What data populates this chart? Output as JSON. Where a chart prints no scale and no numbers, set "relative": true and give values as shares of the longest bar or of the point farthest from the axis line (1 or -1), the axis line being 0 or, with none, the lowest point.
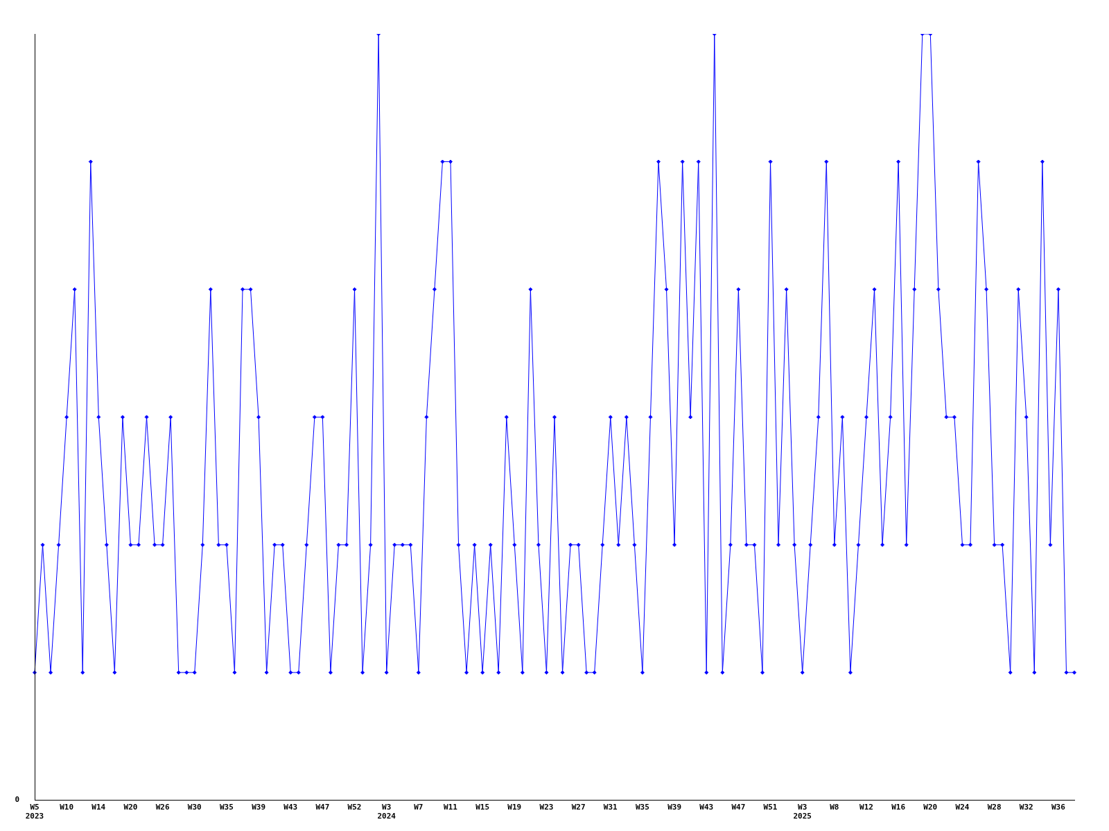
{
  "chart_data": {
    "type": "line",
    "relative": true,
    "marker": "diamond",
    "line_style": "solid",
    "grid": false,
    "legend": false,
    "annotations": [
      "0"
    ],
    "categories": [
      "W5\n2023",
      null,
      null,
      null,
      "W10",
      null,
      null,
      null,
      "W14",
      null,
      null,
      null,
      "W20",
      null,
      null,
      null,
      "W26",
      null,
      null,
      null,
      "W30",
      null,
      null,
      null,
      "W35",
      null,
      null,
      null,
      "W39",
      null,
      null,
      null,
      "W43",
      null,
      null,
      null,
      "W47",
      null,
      null,
      null,
      "W52",
      null,
      null,
      null,
      "W3\n2024",
      null,
      null,
      null,
      "W7",
      null,
      null,
      null,
      "W11",
      null,
      null,
      null,
      "W15",
      null,
      null,
      null,
      "W19",
      null,
      null,
      null,
      "W23",
      null,
      null,
      null,
      "W27",
      null,
      null,
      null,
      "W31",
      null,
      null,
      null,
      "W35",
      null,
      null,
      null,
      "W39",
      null,
      null,
      null,
      "W43",
      null,
      null,
      null,
      "W47",
      null,
      null,
      null,
      "W51",
      null,
      null,
      null,
      "W3\n2025",
      null,
      null,
      null,
      "W8",
      null,
      null,
      null,
      "W12",
      null,
      null,
      null,
      "W16",
      null,
      null,
      null,
      "W20",
      null,
      null,
      null,
      "W24",
      null,
      null,
      null,
      "W28",
      null,
      null,
      null,
      "W32",
      null,
      null,
      null,
      "W36",
      null,
      null
    ],
    "series": [
      {
        "color": "#0000ff",
        "values": [
          0.1667,
          0.3333,
          0.1667,
          0.3333,
          0.5,
          0.6667,
          0.1667,
          0.8333,
          0.5,
          0.3333,
          0.1667,
          0.5,
          0.3333,
          0.3333,
          0.5,
          0.3333,
          0.3333,
          0.5,
          0.1667,
          0.1667,
          0.1667,
          0.3333,
          0.6667,
          0.3333,
          0.3333,
          0.1667,
          0.6667,
          0.6667,
          0.5,
          0.1667,
          0.3333,
          0.3333,
          0.1667,
          0.1667,
          0.3333,
          0.5,
          0.5,
          0.1667,
          0.3333,
          0.3333,
          0.6667,
          0.1667,
          0.3333,
          1,
          0.1667,
          0.3333,
          0.3333,
          0.3333,
          0.1667,
          0.5,
          0.6667,
          0.8333,
          0.8333,
          0.3333,
          0.1667,
          0.3333,
          0.1667,
          0.3333,
          0.1667,
          0.5,
          0.3333,
          0.1667,
          0.6667,
          0.3333,
          0.1667,
          0.5,
          0.1667,
          0.3333,
          0.3333,
          0.1667,
          0.1667,
          0.3333,
          0.5,
          0.3333,
          0.5,
          0.3333,
          0.1667,
          0.5,
          0.8333,
          0.6667,
          0.3333,
          0.8333,
          0.5,
          0.8333,
          0.1667,
          1,
          0.1667,
          0.3333,
          0.6667,
          0.3333,
          0.3333,
          0.1667,
          0.8333,
          0.3333,
          0.6667,
          0.3333,
          0.1667,
          0.3333,
          0.5,
          0.8333,
          0.3333,
          0.5,
          0.1667,
          0.3333,
          0.5,
          0.6667,
          0.3333,
          0.5,
          0.8333,
          0.3333,
          0.6667,
          1,
          1,
          0.6667,
          0.5,
          0.5,
          0.3333,
          0.3333,
          0.8333,
          0.6667,
          0.3333,
          0.3333,
          0.1667,
          0.6667,
          0.5,
          0.1667,
          0.8333,
          0.3333,
          0.6667,
          0.1667,
          0.1667
        ]
      }
    ]
  }
}
